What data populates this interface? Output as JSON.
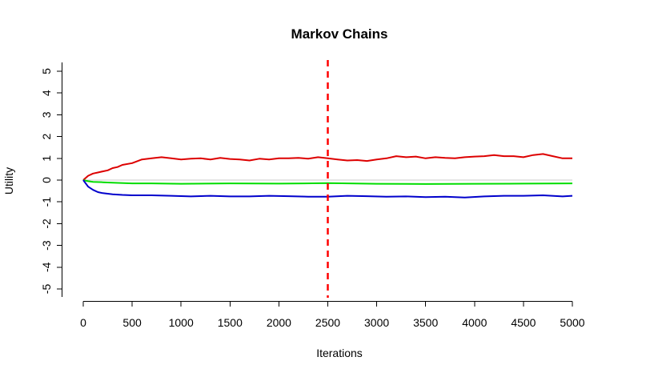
{
  "chart_data": {
    "type": "line",
    "title": "Markov Chains",
    "xlabel": "Iterations",
    "ylabel": "Utility",
    "xlim": [
      0,
      5000
    ],
    "ylim": [
      -5,
      5
    ],
    "x_ticks": [
      0,
      500,
      1000,
      1500,
      2000,
      2500,
      3000,
      3500,
      4000,
      4500,
      5000
    ],
    "y_ticks": [
      -5,
      -4,
      -3,
      -2,
      -1,
      0,
      1,
      2,
      3,
      4,
      5
    ],
    "grid": false,
    "legend": "none",
    "reference_lines": [
      {
        "orientation": "horizontal",
        "value": 0,
        "color": "#c8c8c8",
        "style": "solid"
      },
      {
        "orientation": "vertical",
        "value": 2500,
        "color": "#ff0000",
        "style": "dashed"
      }
    ],
    "series": [
      {
        "color": "#dd0000",
        "x": [
          0,
          50,
          100,
          150,
          200,
          250,
          300,
          350,
          400,
          500,
          600,
          700,
          800,
          900,
          1000,
          1100,
          1200,
          1300,
          1400,
          1500,
          1600,
          1700,
          1800,
          1900,
          2000,
          2100,
          2200,
          2300,
          2400,
          2500,
          2600,
          2700,
          2800,
          2900,
          3000,
          3100,
          3200,
          3300,
          3400,
          3500,
          3600,
          3700,
          3800,
          3900,
          4000,
          4100,
          4200,
          4300,
          4400,
          4500,
          4600,
          4700,
          4800,
          4900,
          5000
        ],
        "values": [
          0.0,
          0.2,
          0.3,
          0.35,
          0.4,
          0.45,
          0.55,
          0.6,
          0.7,
          0.78,
          0.95,
          1.0,
          1.05,
          1.0,
          0.95,
          0.98,
          1.0,
          0.95,
          1.02,
          0.97,
          0.95,
          0.9,
          0.98,
          0.95,
          1.0,
          1.0,
          1.02,
          0.98,
          1.05,
          1.0,
          0.95,
          0.9,
          0.92,
          0.88,
          0.95,
          1.0,
          1.1,
          1.05,
          1.08,
          1.0,
          1.05,
          1.02,
          1.0,
          1.05,
          1.08,
          1.1,
          1.15,
          1.1,
          1.1,
          1.05,
          1.15,
          1.2,
          1.1,
          1.0,
          1.0
        ]
      },
      {
        "color": "#00dd00",
        "x": [
          0,
          50,
          100,
          200,
          300,
          500,
          700,
          1000,
          1500,
          2000,
          2500,
          3000,
          3500,
          4000,
          4500,
          5000
        ],
        "values": [
          0.0,
          -0.05,
          -0.08,
          -0.1,
          -0.12,
          -0.15,
          -0.15,
          -0.17,
          -0.15,
          -0.16,
          -0.14,
          -0.17,
          -0.18,
          -0.17,
          -0.16,
          -0.15
        ]
      },
      {
        "color": "#0000cc",
        "x": [
          0,
          50,
          100,
          150,
          200,
          300,
          400,
          500,
          700,
          900,
          1100,
          1300,
          1500,
          1700,
          1900,
          2100,
          2300,
          2500,
          2700,
          2900,
          3100,
          3300,
          3500,
          3700,
          3900,
          4100,
          4300,
          4500,
          4700,
          4900,
          5000
        ],
        "values": [
          0.0,
          -0.3,
          -0.45,
          -0.55,
          -0.6,
          -0.65,
          -0.68,
          -0.7,
          -0.7,
          -0.72,
          -0.75,
          -0.72,
          -0.75,
          -0.75,
          -0.72,
          -0.74,
          -0.76,
          -0.76,
          -0.72,
          -0.74,
          -0.76,
          -0.75,
          -0.78,
          -0.76,
          -0.8,
          -0.75,
          -0.72,
          -0.72,
          -0.7,
          -0.75,
          -0.72
        ]
      }
    ]
  }
}
